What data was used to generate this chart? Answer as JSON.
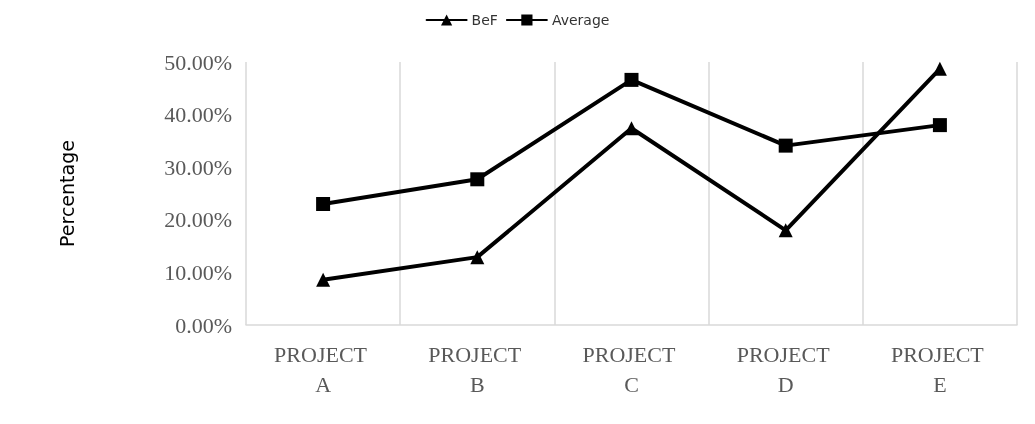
{
  "chart_data": {
    "type": "line",
    "ylabel": "Percentage",
    "categories": [
      "PROJECT A",
      "PROJECT B",
      "PROJECT C",
      "PROJECT D",
      "PROJECT E"
    ],
    "series": [
      {
        "name": "BeF",
        "color": "#000000",
        "marker": "triangle",
        "values": [
          8.6,
          12.9,
          37.4,
          18,
          48.7
        ]
      },
      {
        "name": "Average",
        "color": "#000000",
        "marker": "square",
        "values": [
          23,
          27.7,
          46.6,
          34.1,
          38
        ]
      }
    ],
    "ylim": [
      0,
      50
    ],
    "yticks": [
      {
        "value": 0,
        "label": "0.00%"
      },
      {
        "value": 10,
        "label": "10.00%"
      },
      {
        "value": 20,
        "label": "20.00%"
      },
      {
        "value": 30,
        "label": "30.00%"
      },
      {
        "value": 40,
        "label": "40.00%"
      },
      {
        "value": 50,
        "label": "50.00%"
      }
    ],
    "grid": "x",
    "legend": "top",
    "line_style": "solid"
  }
}
